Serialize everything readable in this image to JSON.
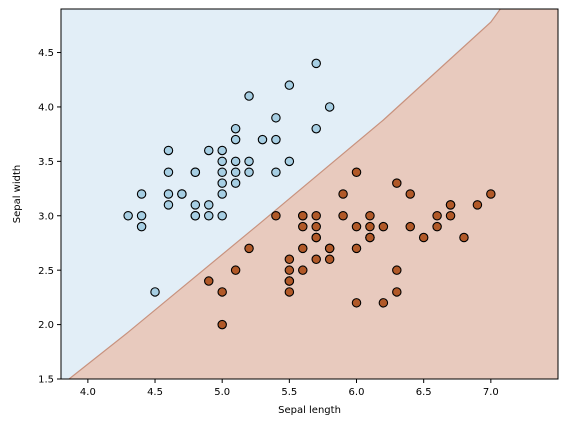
{
  "chart_data": {
    "type": "scatter",
    "title": "",
    "xlabel": "Sepal length",
    "ylabel": "Sepal width",
    "xlim": [
      3.8,
      7.5
    ],
    "ylim": [
      1.5,
      4.9
    ],
    "x_ticks": [
      4.0,
      4.5,
      5.0,
      5.5,
      6.0,
      6.5,
      7.0
    ],
    "y_ticks": [
      1.5,
      2.0,
      2.5,
      3.0,
      3.5,
      4.0,
      4.5
    ],
    "x_tick_labels": [
      "4.0",
      "4.5",
      "5.0",
      "5.5",
      "6.0",
      "6.5",
      "7.0"
    ],
    "y_tick_labels": [
      "1.5",
      "2.0",
      "2.5",
      "3.0",
      "3.5",
      "4.0",
      "4.5"
    ],
    "grid": false,
    "legend": "none",
    "decision_boundary": {
      "points": [
        [
          3.86,
          1.5
        ],
        [
          4.3,
          1.93
        ],
        [
          5.3,
          2.95
        ],
        [
          6.2,
          3.88
        ],
        [
          7.0,
          4.78
        ],
        [
          7.1,
          4.95
        ]
      ],
      "region_above_color": "#e2eef7",
      "region_below_color": "#e8cabe",
      "boundary_color": "#c8927e"
    },
    "series": [
      {
        "color": "#a6cee3",
        "points": [
          [
            4.3,
            3.0
          ],
          [
            4.4,
            3.2
          ],
          [
            4.4,
            3.0
          ],
          [
            4.4,
            2.9
          ],
          [
            4.5,
            2.3
          ],
          [
            4.6,
            3.6
          ],
          [
            4.6,
            3.4
          ],
          [
            4.6,
            3.2
          ],
          [
            4.6,
            3.1
          ],
          [
            4.7,
            3.2
          ],
          [
            4.7,
            3.2
          ],
          [
            4.8,
            3.4
          ],
          [
            4.8,
            3.4
          ],
          [
            4.8,
            3.1
          ],
          [
            4.8,
            3.0
          ],
          [
            4.8,
            3.0
          ],
          [
            4.9,
            3.6
          ],
          [
            4.9,
            3.1
          ],
          [
            4.9,
            3.0
          ],
          [
            5.0,
            3.6
          ],
          [
            5.0,
            3.5
          ],
          [
            5.0,
            3.4
          ],
          [
            5.0,
            3.3
          ],
          [
            5.0,
            3.2
          ],
          [
            5.0,
            3.0
          ],
          [
            5.1,
            3.8
          ],
          [
            5.1,
            3.7
          ],
          [
            5.1,
            3.5
          ],
          [
            5.1,
            3.4
          ],
          [
            5.1,
            3.3
          ],
          [
            5.2,
            4.1
          ],
          [
            5.2,
            3.5
          ],
          [
            5.2,
            3.4
          ],
          [
            5.3,
            3.7
          ],
          [
            5.4,
            3.9
          ],
          [
            5.4,
            3.7
          ],
          [
            5.4,
            3.4
          ],
          [
            5.5,
            4.2
          ],
          [
            5.5,
            3.5
          ],
          [
            5.7,
            4.4
          ],
          [
            5.7,
            3.8
          ],
          [
            5.8,
            4.0
          ]
        ]
      },
      {
        "color": "#b15928",
        "points": [
          [
            4.9,
            2.4
          ],
          [
            5.0,
            2.3
          ],
          [
            5.0,
            2.0
          ],
          [
            5.1,
            2.5
          ],
          [
            5.2,
            2.7
          ],
          [
            5.4,
            3.0
          ],
          [
            5.5,
            2.6
          ],
          [
            5.5,
            2.5
          ],
          [
            5.5,
            2.4
          ],
          [
            5.5,
            2.4
          ],
          [
            5.5,
            2.3
          ],
          [
            5.6,
            3.0
          ],
          [
            5.6,
            3.0
          ],
          [
            5.6,
            2.9
          ],
          [
            5.6,
            2.7
          ],
          [
            5.6,
            2.5
          ],
          [
            5.7,
            3.0
          ],
          [
            5.7,
            2.9
          ],
          [
            5.7,
            2.8
          ],
          [
            5.7,
            2.8
          ],
          [
            5.7,
            2.6
          ],
          [
            5.8,
            2.7
          ],
          [
            5.8,
            2.7
          ],
          [
            5.8,
            2.6
          ],
          [
            5.9,
            3.2
          ],
          [
            5.9,
            3.0
          ],
          [
            6.0,
            3.4
          ],
          [
            6.0,
            2.9
          ],
          [
            6.0,
            2.7
          ],
          [
            6.0,
            2.2
          ],
          [
            6.1,
            3.0
          ],
          [
            6.1,
            2.9
          ],
          [
            6.1,
            2.8
          ],
          [
            6.1,
            2.8
          ],
          [
            6.2,
            2.9
          ],
          [
            6.2,
            2.2
          ],
          [
            6.3,
            3.3
          ],
          [
            6.3,
            2.5
          ],
          [
            6.3,
            2.3
          ],
          [
            6.4,
            3.2
          ],
          [
            6.4,
            2.9
          ],
          [
            6.5,
            2.8
          ],
          [
            6.6,
            3.0
          ],
          [
            6.6,
            2.9
          ],
          [
            6.7,
            3.1
          ],
          [
            6.7,
            3.1
          ],
          [
            6.7,
            3.0
          ],
          [
            6.8,
            2.8
          ],
          [
            6.9,
            3.1
          ],
          [
            7.0,
            3.2
          ]
        ]
      }
    ]
  }
}
